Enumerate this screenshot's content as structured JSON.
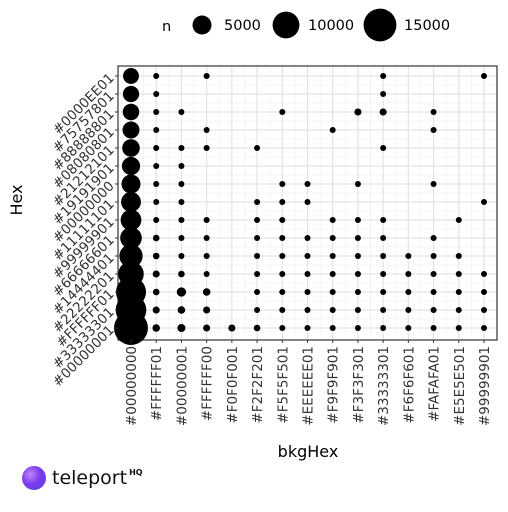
{
  "brand": {
    "name": "teleport",
    "suffix": "HQ",
    "logo_icon": "teleport-logo-icon"
  },
  "chart_data": {
    "type": "scatter",
    "xlabel": "bkgHex",
    "ylabel": "Hex",
    "grid": true,
    "legend_position": "top",
    "legend": {
      "title": "n",
      "items": [
        5000,
        10000,
        15000
      ]
    },
    "x_categories": [
      "#00000000",
      "#FFFFFF01",
      "#00000001",
      "#FFFFFF00",
      "#F0F0F001",
      "#F2F2F201",
      "#F5F5F501",
      "#EEEEEE01",
      "#F9F9F901",
      "#F3F3F301",
      "#33333301",
      "#F6F6F601",
      "#FAFAFA01",
      "#E5E5E501",
      "#99999901"
    ],
    "y_categories": [
      "#00000001",
      "#33333301",
      "#FFFFFF01",
      "#22222201",
      "#14444401",
      "#66666601",
      "#99999901",
      "#11111101",
      "#00000000",
      "#19191901",
      "#21212101",
      "#08080801",
      "#88888801",
      "#75757801",
      "#0000EE01"
    ],
    "points": [
      {
        "x": "#00000000",
        "y": "#00000001",
        "n": 16000
      },
      {
        "x": "#00000000",
        "y": "#33333301",
        "n": 13000
      },
      {
        "x": "#00000000",
        "y": "#FFFFFF01",
        "n": 12500
      },
      {
        "x": "#00000000",
        "y": "#22222201",
        "n": 9000
      },
      {
        "x": "#00000000",
        "y": "#14444401",
        "n": 7500
      },
      {
        "x": "#00000000",
        "y": "#66666601",
        "n": 6500
      },
      {
        "x": "#00000000",
        "y": "#99999901",
        "n": 6000
      },
      {
        "x": "#00000000",
        "y": "#11111101",
        "n": 5500
      },
      {
        "x": "#00000000",
        "y": "#00000000",
        "n": 5000
      },
      {
        "x": "#00000000",
        "y": "#19191901",
        "n": 4600
      },
      {
        "x": "#00000000",
        "y": "#21212101",
        "n": 4300
      },
      {
        "x": "#00000000",
        "y": "#08080801",
        "n": 4000
      },
      {
        "x": "#00000000",
        "y": "#88888801",
        "n": 3800
      },
      {
        "x": "#00000000",
        "y": "#75757801",
        "n": 3700
      },
      {
        "x": "#00000000",
        "y": "#0000EE01",
        "n": 3500
      },
      {
        "x": "#FFFFFF01",
        "y": "#00000001",
        "n": 800
      },
      {
        "x": "#FFFFFF01",
        "y": "#33333301",
        "n": 700
      },
      {
        "x": "#FFFFFF01",
        "y": "#FFFFFF01",
        "n": 600
      },
      {
        "x": "#FFFFFF01",
        "y": "#22222201",
        "n": 700
      },
      {
        "x": "#FFFFFF01",
        "y": "#14444401",
        "n": 600
      },
      {
        "x": "#FFFFFF01",
        "y": "#66666601",
        "n": 600
      },
      {
        "x": "#FFFFFF01",
        "y": "#99999901",
        "n": 500
      },
      {
        "x": "#FFFFFF01",
        "y": "#11111101",
        "n": 500
      },
      {
        "x": "#FFFFFF01",
        "y": "#00000000",
        "n": 500
      },
      {
        "x": "#FFFFFF01",
        "y": "#19191901",
        "n": 500
      },
      {
        "x": "#FFFFFF01",
        "y": "#21212101",
        "n": 500
      },
      {
        "x": "#FFFFFF01",
        "y": "#08080801",
        "n": 500
      },
      {
        "x": "#FFFFFF01",
        "y": "#88888801",
        "n": 500
      },
      {
        "x": "#FFFFFF01",
        "y": "#75757801",
        "n": 500
      },
      {
        "x": "#FFFFFF01",
        "y": "#0000EE01",
        "n": 500
      },
      {
        "x": "#00000001",
        "y": "#00000001",
        "n": 900
      },
      {
        "x": "#00000001",
        "y": "#33333301",
        "n": 800
      },
      {
        "x": "#00000001",
        "y": "#FFFFFF01",
        "n": 1200
      },
      {
        "x": "#00000001",
        "y": "#22222201",
        "n": 600
      },
      {
        "x": "#00000001",
        "y": "#14444401",
        "n": 500
      },
      {
        "x": "#00000001",
        "y": "#66666601",
        "n": 500
      },
      {
        "x": "#00000001",
        "y": "#99999901",
        "n": 500
      },
      {
        "x": "#00000001",
        "y": "#11111101",
        "n": 500
      },
      {
        "x": "#00000001",
        "y": "#00000000",
        "n": 500
      },
      {
        "x": "#00000001",
        "y": "#19191901",
        "n": 500
      },
      {
        "x": "#00000001",
        "y": "#21212101",
        "n": 500
      },
      {
        "x": "#00000001",
        "y": "#88888801",
        "n": 500
      },
      {
        "x": "#FFFFFF00",
        "y": "#00000001",
        "n": 700
      },
      {
        "x": "#FFFFFF00",
        "y": "#33333301",
        "n": 700
      },
      {
        "x": "#FFFFFF00",
        "y": "#FFFFFF01",
        "n": 800
      },
      {
        "x": "#FFFFFF00",
        "y": "#22222201",
        "n": 500
      },
      {
        "x": "#FFFFFF00",
        "y": "#14444401",
        "n": 500
      },
      {
        "x": "#FFFFFF00",
        "y": "#66666601",
        "n": 500
      },
      {
        "x": "#FFFFFF00",
        "y": "#99999901",
        "n": 500
      },
      {
        "x": "#FFFFFF00",
        "y": "#21212101",
        "n": 500
      },
      {
        "x": "#FFFFFF00",
        "y": "#08080801",
        "n": 500
      },
      {
        "x": "#FFFFFF00",
        "y": "#0000EE01",
        "n": 500
      },
      {
        "x": "#F0F0F001",
        "y": "#00000001",
        "n": 700
      },
      {
        "x": "#F2F2F201",
        "y": "#00000001",
        "n": 600
      },
      {
        "x": "#F2F2F201",
        "y": "#33333301",
        "n": 500
      },
      {
        "x": "#F2F2F201",
        "y": "#FFFFFF01",
        "n": 500
      },
      {
        "x": "#F2F2F201",
        "y": "#22222201",
        "n": 500
      },
      {
        "x": "#F2F2F201",
        "y": "#14444401",
        "n": 500
      },
      {
        "x": "#F2F2F201",
        "y": "#66666601",
        "n": 500
      },
      {
        "x": "#F2F2F201",
        "y": "#99999901",
        "n": 500
      },
      {
        "x": "#F2F2F201",
        "y": "#11111101",
        "n": 500
      },
      {
        "x": "#F2F2F201",
        "y": "#21212101",
        "n": 500
      },
      {
        "x": "#F5F5F501",
        "y": "#00000001",
        "n": 500
      },
      {
        "x": "#F5F5F501",
        "y": "#33333301",
        "n": 500
      },
      {
        "x": "#F5F5F501",
        "y": "#FFFFFF01",
        "n": 500
      },
      {
        "x": "#F5F5F501",
        "y": "#22222201",
        "n": 500
      },
      {
        "x": "#F5F5F501",
        "y": "#14444401",
        "n": 500
      },
      {
        "x": "#F5F5F501",
        "y": "#66666601",
        "n": 500
      },
      {
        "x": "#F5F5F501",
        "y": "#99999901",
        "n": 500
      },
      {
        "x": "#F5F5F501",
        "y": "#11111101",
        "n": 500
      },
      {
        "x": "#F5F5F501",
        "y": "#00000000",
        "n": 500
      },
      {
        "x": "#F5F5F501",
        "y": "#88888801",
        "n": 500
      },
      {
        "x": "#EEEEEE01",
        "y": "#00000001",
        "n": 500
      },
      {
        "x": "#EEEEEE01",
        "y": "#33333301",
        "n": 500
      },
      {
        "x": "#EEEEEE01",
        "y": "#FFFFFF01",
        "n": 500
      },
      {
        "x": "#EEEEEE01",
        "y": "#22222201",
        "n": 500
      },
      {
        "x": "#EEEEEE01",
        "y": "#14444401",
        "n": 500
      },
      {
        "x": "#EEEEEE01",
        "y": "#66666601",
        "n": 500
      },
      {
        "x": "#EEEEEE01",
        "y": "#11111101",
        "n": 500
      },
      {
        "x": "#EEEEEE01",
        "y": "#00000000",
        "n": 500
      },
      {
        "x": "#F9F9F901",
        "y": "#00000001",
        "n": 500
      },
      {
        "x": "#F9F9F901",
        "y": "#33333301",
        "n": 500
      },
      {
        "x": "#F9F9F901",
        "y": "#FFFFFF01",
        "n": 500
      },
      {
        "x": "#F9F9F901",
        "y": "#22222201",
        "n": 500
      },
      {
        "x": "#F9F9F901",
        "y": "#14444401",
        "n": 500
      },
      {
        "x": "#F9F9F901",
        "y": "#66666601",
        "n": 500
      },
      {
        "x": "#F9F9F901",
        "y": "#99999901",
        "n": 500
      },
      {
        "x": "#F9F9F901",
        "y": "#08080801",
        "n": 500
      },
      {
        "x": "#F3F3F301",
        "y": "#00000001",
        "n": 500
      },
      {
        "x": "#F3F3F301",
        "y": "#33333301",
        "n": 500
      },
      {
        "x": "#F3F3F301",
        "y": "#FFFFFF01",
        "n": 500
      },
      {
        "x": "#F3F3F301",
        "y": "#22222201",
        "n": 500
      },
      {
        "x": "#F3F3F301",
        "y": "#14444401",
        "n": 500
      },
      {
        "x": "#F3F3F301",
        "y": "#66666601",
        "n": 500
      },
      {
        "x": "#F3F3F301",
        "y": "#99999901",
        "n": 500
      },
      {
        "x": "#F3F3F301",
        "y": "#00000000",
        "n": 500
      },
      {
        "x": "#F3F3F301",
        "y": "#88888801",
        "n": 700
      },
      {
        "x": "#33333301",
        "y": "#00000001",
        "n": 500
      },
      {
        "x": "#33333301",
        "y": "#33333301",
        "n": 500
      },
      {
        "x": "#33333301",
        "y": "#FFFFFF01",
        "n": 500
      },
      {
        "x": "#33333301",
        "y": "#22222201",
        "n": 500
      },
      {
        "x": "#33333301",
        "y": "#14444401",
        "n": 500
      },
      {
        "x": "#33333301",
        "y": "#66666601",
        "n": 500
      },
      {
        "x": "#33333301",
        "y": "#99999901",
        "n": 500
      },
      {
        "x": "#33333301",
        "y": "#21212101",
        "n": 500
      },
      {
        "x": "#33333301",
        "y": "#88888801",
        "n": 700
      },
      {
        "x": "#33333301",
        "y": "#75757801",
        "n": 500
      },
      {
        "x": "#33333301",
        "y": "#0000EE01",
        "n": 500
      },
      {
        "x": "#F6F6F601",
        "y": "#00000001",
        "n": 500
      },
      {
        "x": "#F6F6F601",
        "y": "#33333301",
        "n": 500
      },
      {
        "x": "#F6F6F601",
        "y": "#FFFFFF01",
        "n": 500
      },
      {
        "x": "#F6F6F601",
        "y": "#22222201",
        "n": 500
      },
      {
        "x": "#F6F6F601",
        "y": "#14444401",
        "n": 500
      },
      {
        "x": "#FAFAFA01",
        "y": "#00000001",
        "n": 500
      },
      {
        "x": "#FAFAFA01",
        "y": "#33333301",
        "n": 500
      },
      {
        "x": "#FAFAFA01",
        "y": "#FFFFFF01",
        "n": 500
      },
      {
        "x": "#FAFAFA01",
        "y": "#22222201",
        "n": 500
      },
      {
        "x": "#FAFAFA01",
        "y": "#14444401",
        "n": 500
      },
      {
        "x": "#FAFAFA01",
        "y": "#66666601",
        "n": 500
      },
      {
        "x": "#FAFAFA01",
        "y": "#00000000",
        "n": 500
      },
      {
        "x": "#FAFAFA01",
        "y": "#08080801",
        "n": 500
      },
      {
        "x": "#FAFAFA01",
        "y": "#88888801",
        "n": 500
      },
      {
        "x": "#E5E5E501",
        "y": "#00000001",
        "n": 500
      },
      {
        "x": "#E5E5E501",
        "y": "#33333301",
        "n": 500
      },
      {
        "x": "#E5E5E501",
        "y": "#FFFFFF01",
        "n": 500
      },
      {
        "x": "#E5E5E501",
        "y": "#22222201",
        "n": 500
      },
      {
        "x": "#E5E5E501",
        "y": "#14444401",
        "n": 500
      },
      {
        "x": "#E5E5E501",
        "y": "#99999901",
        "n": 500
      },
      {
        "x": "#99999901",
        "y": "#00000001",
        "n": 500
      },
      {
        "x": "#99999901",
        "y": "#33333301",
        "n": 500
      },
      {
        "x": "#99999901",
        "y": "#FFFFFF01",
        "n": 500
      },
      {
        "x": "#99999901",
        "y": "#22222201",
        "n": 500
      },
      {
        "x": "#99999901",
        "y": "#11111101",
        "n": 500
      },
      {
        "x": "#99999901",
        "y": "#0000EE01",
        "n": 500
      }
    ]
  }
}
